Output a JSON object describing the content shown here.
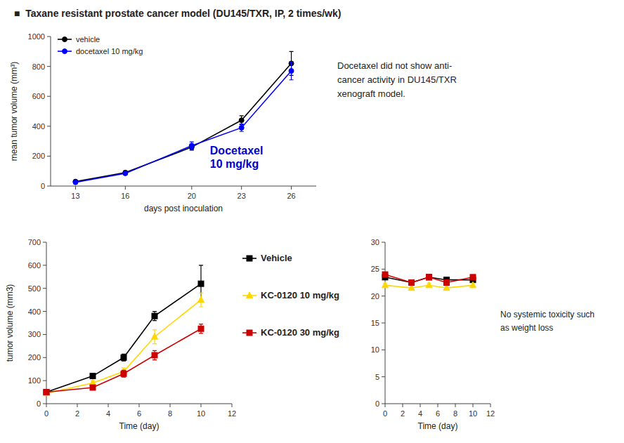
{
  "chart_data": [
    {
      "type": "line",
      "title": "■  Taxane resistant prostate cancer model (DU145/TXR, IP, 2 times/wk)",
      "xlabel": "days post inoculation",
      "ylabel": "mean tumor volume (mm³)",
      "x": [
        13,
        16,
        20,
        23,
        26
      ],
      "xlim": [
        11.5,
        27.5
      ],
      "xticks": [
        13,
        16,
        20,
        23,
        26
      ],
      "ylim": [
        0,
        1000
      ],
      "yticks": [
        0,
        200,
        400,
        600,
        800,
        1000
      ],
      "grid": false,
      "legend": "upper left",
      "series": [
        {
          "name": "vehicle",
          "color": "#000000",
          "marker": "circle",
          "values": [
            30,
            90,
            260,
            440,
            820
          ],
          "errors": [
            5,
            10,
            20,
            30,
            80
          ]
        },
        {
          "name": "docetaxel 10 mg/kg",
          "color": "#0000ff",
          "marker": "circle",
          "values": [
            25,
            85,
            270,
            390,
            770
          ],
          "errors": [
            5,
            10,
            25,
            25,
            60
          ]
        }
      ],
      "annotations": [
        {
          "text": "Docetaxel\n10 mg/kg",
          "color": "#0000cc"
        },
        {
          "text": "Docetaxel did not show anti-\ncancer activity in DU145/TXR\nxenograft model."
        }
      ]
    },
    {
      "type": "line",
      "xlabel": "Time (day)",
      "ylabel": "tumor volume (mm3)",
      "x": [
        0,
        3,
        5,
        7,
        10
      ],
      "xlim": [
        0,
        12
      ],
      "xticks": [
        0,
        2,
        4,
        6,
        8,
        10,
        12
      ],
      "ylim": [
        0,
        700
      ],
      "yticks": [
        0,
        100,
        200,
        300,
        400,
        500,
        600,
        700
      ],
      "grid": false,
      "legend": "right",
      "series": [
        {
          "name": "Vehicle",
          "color": "#000000",
          "marker": "square",
          "values": [
            50,
            120,
            200,
            380,
            520
          ],
          "errors": [
            5,
            10,
            15,
            20,
            80
          ]
        },
        {
          "name": "KC-0120 10 mg/kg",
          "color": "#FFD700",
          "marker": "triangle",
          "values": [
            45,
            90,
            140,
            290,
            450
          ],
          "errors": [
            5,
            10,
            15,
            30,
            30
          ]
        },
        {
          "name": "KC-0120 30 mg/kg",
          "color": "#cc0000",
          "marker": "square",
          "values": [
            50,
            70,
            130,
            210,
            325
          ],
          "errors": [
            5,
            10,
            15,
            20,
            20
          ]
        }
      ]
    },
    {
      "type": "line",
      "xlabel": "Time (day)",
      "x": [
        0,
        3,
        5,
        7,
        10
      ],
      "xlim": [
        0,
        12
      ],
      "xticks": [
        0,
        2,
        4,
        6,
        8,
        10,
        12
      ],
      "ylim": [
        0,
        30
      ],
      "yticks": [
        0,
        5,
        10,
        15,
        20,
        25,
        30
      ],
      "grid": false,
      "series": [
        {
          "color": "#000000",
          "marker": "square",
          "values": [
            23.5,
            22.5,
            23.5,
            23.0,
            23.0
          ],
          "errors": [
            0.4,
            0.4,
            0.4,
            0.4,
            0.4
          ]
        },
        {
          "color": "#FFD700",
          "marker": "triangle",
          "values": [
            22.0,
            21.5,
            22.0,
            21.5,
            22.0
          ],
          "errors": [
            0.4,
            0.4,
            0.4,
            0.4,
            0.4
          ]
        },
        {
          "color": "#cc0000",
          "marker": "square",
          "values": [
            24.0,
            22.5,
            23.5,
            22.5,
            23.5
          ],
          "errors": [
            0.4,
            0.4,
            0.4,
            0.4,
            0.4
          ]
        }
      ],
      "annotations": [
        {
          "text": "No systemic toxicity such\nas weight loss"
        }
      ]
    }
  ]
}
